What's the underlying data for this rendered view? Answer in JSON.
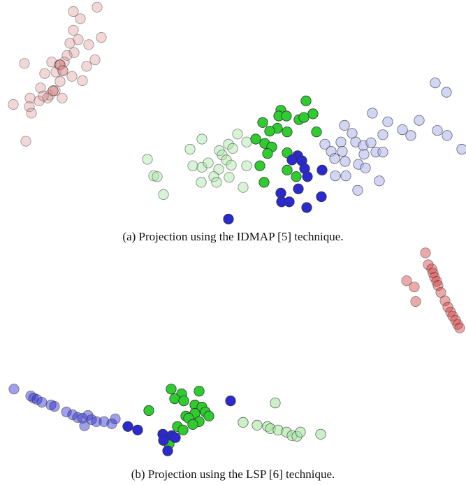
{
  "captions": {
    "a": "(a) Projection using the IDMAP [5] technique.",
    "b": "(b) Projection using the LSP [6] technique."
  },
  "colors": {
    "red": "#d98c8c",
    "red_strong": "#cc2a2a",
    "blue_light": "#b6b9ee",
    "blue_strong": "#2a2ad0",
    "green_light": "#a9e6a3",
    "green_strong": "#2ecc2e",
    "edge": "#333333"
  },
  "chart_data": [
    {
      "type": "scatter",
      "xlim": [
        0,
        667
      ],
      "ylim": [
        0,
        320
      ],
      "title": "",
      "xlabel": "",
      "ylabel": "",
      "grid": false,
      "series": [
        {
          "color_key": "red",
          "opacity": 0.35,
          "points": [
            [
              105,
              16
            ],
            [
              139,
              10
            ],
            [
              115,
              26
            ],
            [
              105,
              42
            ],
            [
              127,
              62
            ],
            [
              145,
              52
            ],
            [
              112,
              55
            ],
            [
              100,
              60
            ],
            [
              106,
              73
            ],
            [
              96,
              77
            ],
            [
              136,
              83
            ],
            [
              74,
              86
            ],
            [
              85,
              90
            ],
            [
              92,
              86
            ],
            [
              35,
              88
            ],
            [
              124,
              92
            ],
            [
              64,
              102
            ],
            [
              80,
              100
            ],
            [
              103,
              106
            ],
            [
              118,
              112
            ],
            [
              86,
              113
            ],
            [
              58,
              122
            ],
            [
              71,
              132
            ],
            [
              79,
              126
            ],
            [
              68,
              136
            ],
            [
              89,
              136
            ],
            [
              56,
              140
            ],
            [
              43,
              136
            ],
            [
              62,
              133
            ],
            [
              19,
              145
            ],
            [
              42,
              148
            ],
            [
              45,
              157
            ],
            [
              37,
              196
            ]
          ]
        },
        {
          "color_key": "red",
          "opacity": 0.6,
          "points": [
            [
              86,
              90
            ],
            [
              90,
              98
            ],
            [
              76,
              126
            ]
          ]
        },
        {
          "color_key": "blue_light",
          "opacity": 0.6,
          "points": [
            [
              623,
              115
            ],
            [
              639,
              128
            ],
            [
              533,
              157
            ],
            [
              600,
              167
            ],
            [
              493,
              174
            ],
            [
              555,
              169
            ],
            [
              576,
              180
            ],
            [
              626,
              181
            ],
            [
              588,
              188
            ],
            [
              640,
              188
            ],
            [
              661,
              207
            ],
            [
              548,
              187
            ],
            [
              504,
              185
            ],
            [
              488,
              197
            ],
            [
              509,
              197
            ],
            [
              465,
              200
            ],
            [
              520,
              202
            ],
            [
              531,
              198
            ],
            [
              538,
              211
            ],
            [
              548,
              211
            ],
            [
              474,
              210
            ],
            [
              490,
              210
            ],
            [
              521,
              214
            ],
            [
              479,
              220
            ],
            [
              494,
              224
            ],
            [
              513,
              228
            ],
            [
              523,
              233
            ],
            [
              480,
              244
            ],
            [
              495,
              244
            ],
            [
              543,
              251
            ],
            [
              512,
              264
            ]
          ]
        },
        {
          "color_key": "green_light",
          "opacity": 0.45,
          "points": [
            [
              289,
              193
            ],
            [
              340,
              186
            ],
            [
              353,
              197
            ],
            [
              272,
              207
            ],
            [
              314,
              209
            ],
            [
              327,
              200
            ],
            [
              333,
              206
            ],
            [
              318,
              215
            ],
            [
              324,
              222
            ],
            [
              211,
              221
            ],
            [
              276,
              230
            ],
            [
              289,
              232
            ],
            [
              298,
              226
            ],
            [
              331,
              229
            ],
            [
              353,
              230
            ],
            [
              313,
              235
            ],
            [
              220,
              244
            ],
            [
              225,
              245
            ],
            [
              306,
              245
            ],
            [
              328,
              246
            ],
            [
              288,
              253
            ],
            [
              310,
              253
            ],
            [
              348,
              260
            ],
            [
              234,
              270
            ]
          ]
        },
        {
          "color_key": "green_strong",
          "opacity": 1,
          "points": [
            [
              438,
              140
            ],
            [
              402,
              153
            ],
            [
              448,
              158
            ],
            [
              399,
              161
            ],
            [
              410,
              161
            ],
            [
              428,
              166
            ],
            [
              435,
              163
            ],
            [
              376,
              170
            ],
            [
              397,
              178
            ],
            [
              386,
              182
            ],
            [
              411,
              183
            ],
            [
              366,
              193
            ],
            [
              453,
              183
            ],
            [
              379,
              199
            ],
            [
              389,
              204
            ],
            [
              383,
              213
            ],
            [
              411,
              212
            ],
            [
              372,
              230
            ],
            [
              411,
              236
            ],
            [
              424,
              245
            ],
            [
              378,
              253
            ]
          ]
        },
        {
          "color_key": "blue_strong",
          "opacity": 1,
          "points": [
            [
              426,
              216
            ],
            [
              418,
              222
            ],
            [
              432,
              223
            ],
            [
              436,
              234
            ],
            [
              440,
              245
            ],
            [
              461,
              236
            ],
            [
              427,
              262
            ],
            [
              402,
              268
            ],
            [
              403,
              280
            ],
            [
              414,
              280
            ],
            [
              460,
              273
            ],
            [
              439,
              288
            ],
            [
              327,
              304
            ]
          ]
        }
      ]
    },
    {
      "type": "scatter",
      "xlim": [
        0,
        667
      ],
      "ylim": [
        0,
        320
      ],
      "title": "",
      "xlabel": "",
      "ylabel": "",
      "grid": false,
      "series": [
        {
          "color_key": "red_strong",
          "opacity": 0.4,
          "points": [
            [
              609,
              15
            ],
            [
              613,
              32
            ],
            [
              618,
              38
            ],
            [
              620,
              44
            ],
            [
              622,
              50
            ],
            [
              625,
              56
            ],
            [
              627,
              62
            ],
            [
              631,
              72
            ],
            [
              637,
              84
            ],
            [
              641,
              93
            ],
            [
              645,
              100
            ],
            [
              648,
              106
            ],
            [
              652,
              112
            ],
            [
              655,
              118
            ],
            [
              658,
              123
            ],
            [
              582,
              55
            ],
            [
              593,
              64
            ],
            [
              595,
              85
            ]
          ]
        },
        {
          "color_key": "blue_strong",
          "opacity": 0.45,
          "points": [
            [
              20,
              211
            ],
            [
              44,
              221
            ],
            [
              48,
              224
            ],
            [
              53,
              226
            ],
            [
              60,
              230
            ],
            [
              73,
              234
            ],
            [
              78,
              236
            ],
            [
              95,
              244
            ],
            [
              104,
              248
            ],
            [
              111,
              252
            ],
            [
              118,
              253
            ],
            [
              126,
              249
            ],
            [
              131,
              255
            ],
            [
              138,
              258
            ],
            [
              149,
              258
            ],
            [
              160,
              261
            ],
            [
              165,
              254
            ],
            [
              121,
              264
            ]
          ]
        },
        {
          "color_key": "green_light",
          "opacity": 0.6,
          "points": [
            [
              394,
              231
            ],
            [
              348,
              259
            ],
            [
              368,
              263
            ],
            [
              383,
              265
            ],
            [
              387,
              268
            ],
            [
              398,
              270
            ],
            [
              410,
              273
            ],
            [
              418,
              278
            ],
            [
              425,
              279
            ],
            [
              430,
              273
            ],
            [
              459,
              276
            ]
          ]
        },
        {
          "color_key": "green_strong",
          "opacity": 1,
          "points": [
            [
              245,
              211
            ],
            [
              260,
              218
            ],
            [
              285,
              214
            ],
            [
              250,
              225
            ],
            [
              263,
              228
            ],
            [
              279,
              234
            ],
            [
              213,
              242
            ],
            [
              266,
              250
            ],
            [
              289,
              237
            ],
            [
              294,
              244
            ],
            [
              279,
              246
            ],
            [
              270,
              253
            ],
            [
              299,
              250
            ],
            [
              285,
              258
            ],
            [
              276,
              262
            ],
            [
              254,
              265
            ],
            [
              262,
              270
            ],
            [
              242,
              290
            ]
          ]
        },
        {
          "color_key": "blue_strong",
          "opacity": 1,
          "points": [
            [
              330,
              228
            ],
            [
              183,
              265
            ],
            [
              197,
              270
            ],
            [
              233,
              276
            ],
            [
              246,
              278
            ],
            [
              251,
              281
            ],
            [
              234,
              285
            ],
            [
              240,
              300
            ]
          ]
        }
      ]
    }
  ]
}
